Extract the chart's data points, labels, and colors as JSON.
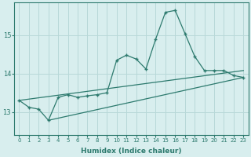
{
  "xlabel": "Humidex (Indice chaleur)",
  "ylabel": "",
  "bg_color": "#d8eeee",
  "grid_color": "#b8d8d8",
  "line_color": "#2d7a6e",
  "xlim": [
    -0.5,
    23.5
  ],
  "ylim": [
    12.4,
    15.85
  ],
  "yticks": [
    13,
    14,
    15
  ],
  "xticks": [
    0,
    1,
    2,
    3,
    4,
    5,
    6,
    7,
    8,
    9,
    10,
    11,
    12,
    13,
    14,
    15,
    16,
    17,
    18,
    19,
    20,
    21,
    22,
    23
  ],
  "curve1_x": [
    0,
    1,
    2,
    3,
    4,
    5,
    6,
    7,
    8,
    9,
    10,
    11,
    12,
    13,
    14,
    15,
    16,
    17,
    18,
    19,
    20,
    21,
    22,
    23
  ],
  "curve1_y": [
    13.3,
    13.12,
    13.07,
    12.78,
    13.38,
    13.45,
    13.38,
    13.42,
    13.45,
    13.5,
    14.35,
    14.48,
    14.38,
    14.12,
    14.9,
    15.6,
    15.65,
    15.05,
    14.45,
    14.08,
    14.08,
    14.08,
    13.95,
    13.9
  ],
  "line1_x": [
    0,
    23
  ],
  "line1_y": [
    13.3,
    14.08
  ],
  "line2_x": [
    3,
    23
  ],
  "line2_y": [
    12.78,
    13.9
  ]
}
